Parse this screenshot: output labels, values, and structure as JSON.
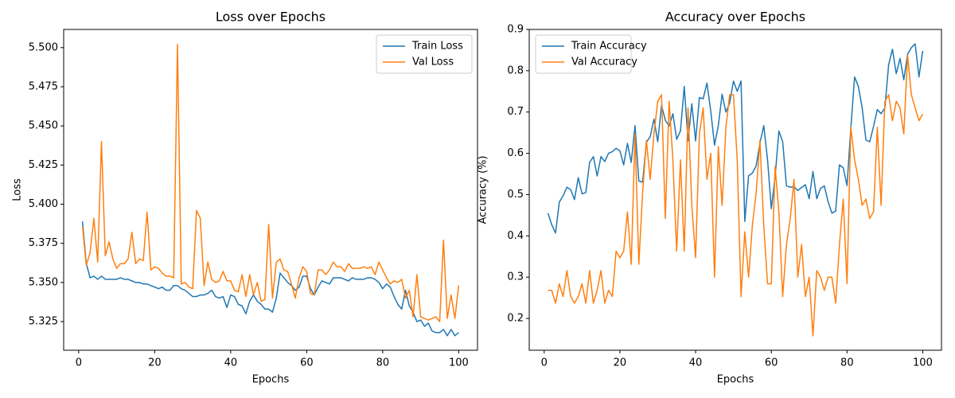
{
  "chart_data": [
    {
      "type": "line",
      "title": "Loss over Epochs",
      "xlabel": "Epochs",
      "ylabel": "Loss",
      "x": [
        1,
        2,
        3,
        4,
        5,
        6,
        7,
        8,
        9,
        10,
        11,
        12,
        13,
        14,
        15,
        16,
        17,
        18,
        19,
        20,
        21,
        22,
        23,
        24,
        25,
        26,
        27,
        28,
        29,
        30,
        31,
        32,
        33,
        34,
        35,
        36,
        37,
        38,
        39,
        40,
        41,
        42,
        43,
        44,
        45,
        46,
        47,
        48,
        49,
        50,
        51,
        52,
        53,
        54,
        55,
        56,
        57,
        58,
        59,
        60,
        61,
        62,
        63,
        64,
        65,
        66,
        67,
        68,
        69,
        70,
        71,
        72,
        73,
        74,
        75,
        76,
        77,
        78,
        79,
        80,
        81,
        82,
        83,
        84,
        85,
        86,
        87,
        88,
        89,
        90,
        91,
        92,
        93,
        94,
        95,
        96,
        97,
        98,
        99,
        100
      ],
      "series": [
        {
          "name": "Train Loss",
          "color": "#1f77b4",
          "values": [
            5.389,
            5.362,
            5.353,
            5.354,
            5.352,
            5.354,
            5.352,
            5.352,
            5.352,
            5.352,
            5.353,
            5.352,
            5.352,
            5.351,
            5.35,
            5.35,
            5.349,
            5.349,
            5.348,
            5.347,
            5.346,
            5.347,
            5.345,
            5.345,
            5.348,
            5.348,
            5.346,
            5.345,
            5.343,
            5.341,
            5.341,
            5.342,
            5.342,
            5.343,
            5.345,
            5.341,
            5.34,
            5.341,
            5.334,
            5.342,
            5.341,
            5.336,
            5.335,
            5.33,
            5.338,
            5.342,
            5.338,
            5.336,
            5.333,
            5.333,
            5.331,
            5.34,
            5.356,
            5.353,
            5.35,
            5.348,
            5.345,
            5.347,
            5.354,
            5.354,
            5.346,
            5.342,
            5.347,
            5.351,
            5.35,
            5.349,
            5.353,
            5.353,
            5.353,
            5.352,
            5.351,
            5.353,
            5.352,
            5.352,
            5.352,
            5.353,
            5.353,
            5.352,
            5.35,
            5.346,
            5.349,
            5.347,
            5.341,
            5.336,
            5.333,
            5.345,
            5.335,
            5.331,
            5.325,
            5.326,
            5.322,
            5.324,
            5.319,
            5.318,
            5.318,
            5.32,
            5.316,
            5.32,
            5.316,
            5.318
          ]
        },
        {
          "name": "Val Loss",
          "color": "#ff7f0e",
          "values": [
            5.386,
            5.361,
            5.369,
            5.391,
            5.363,
            5.44,
            5.367,
            5.376,
            5.365,
            5.359,
            5.362,
            5.362,
            5.365,
            5.382,
            5.362,
            5.365,
            5.364,
            5.395,
            5.358,
            5.36,
            5.359,
            5.356,
            5.354,
            5.354,
            5.353,
            5.502,
            5.349,
            5.35,
            5.347,
            5.346,
            5.396,
            5.391,
            5.348,
            5.363,
            5.352,
            5.35,
            5.351,
            5.357,
            5.351,
            5.351,
            5.345,
            5.344,
            5.355,
            5.341,
            5.355,
            5.342,
            5.35,
            5.338,
            5.339,
            5.387,
            5.34,
            5.363,
            5.365,
            5.358,
            5.357,
            5.349,
            5.34,
            5.353,
            5.36,
            5.357,
            5.343,
            5.342,
            5.358,
            5.358,
            5.355,
            5.358,
            5.363,
            5.36,
            5.36,
            5.357,
            5.362,
            5.359,
            5.359,
            5.359,
            5.36,
            5.359,
            5.36,
            5.355,
            5.363,
            5.358,
            5.353,
            5.349,
            5.351,
            5.35,
            5.352,
            5.34,
            5.345,
            5.328,
            5.355,
            5.328,
            5.327,
            5.326,
            5.327,
            5.328,
            5.325,
            5.377,
            5.327,
            5.342,
            5.327,
            5.348
          ]
        }
      ],
      "xlim": [
        -3.95,
        104.95
      ],
      "ylim": [
        5.3067,
        5.5116
      ],
      "xticks": [
        0,
        20,
        40,
        60,
        80,
        100
      ],
      "yticks": [
        5.325,
        {
          "value": 5.35,
          "label": "5.350"
        },
        5.375,
        {
          "value": 5.4,
          "label": "5.400"
        },
        5.425,
        {
          "value": 5.45,
          "label": "5.450"
        },
        5.475,
        {
          "value": 5.5,
          "label": "5.500"
        }
      ],
      "legend": "upper right"
    },
    {
      "type": "line",
      "title": "Accuracy over Epochs",
      "xlabel": "Epochs",
      "ylabel": "Accuracy (%)",
      "x": [
        1,
        2,
        3,
        4,
        5,
        6,
        7,
        8,
        9,
        10,
        11,
        12,
        13,
        14,
        15,
        16,
        17,
        18,
        19,
        20,
        21,
        22,
        23,
        24,
        25,
        26,
        27,
        28,
        29,
        30,
        31,
        32,
        33,
        34,
        35,
        36,
        37,
        38,
        39,
        40,
        41,
        42,
        43,
        44,
        45,
        46,
        47,
        48,
        49,
        50,
        51,
        52,
        53,
        54,
        55,
        56,
        57,
        58,
        59,
        60,
        61,
        62,
        63,
        64,
        65,
        66,
        67,
        68,
        69,
        70,
        71,
        72,
        73,
        74,
        75,
        76,
        77,
        78,
        79,
        80,
        81,
        82,
        83,
        84,
        85,
        86,
        87,
        88,
        89,
        90,
        91,
        92,
        93,
        94,
        95,
        96,
        97,
        98,
        99,
        100
      ],
      "series": [
        {
          "name": "Train Accuracy",
          "color": "#1f77b4",
          "values": [
            0.455,
            0.427,
            0.407,
            0.482,
            0.497,
            0.518,
            0.512,
            0.488,
            0.541,
            0.502,
            0.505,
            0.578,
            0.592,
            0.545,
            0.592,
            0.58,
            0.6,
            0.604,
            0.612,
            0.606,
            0.572,
            0.624,
            0.578,
            0.667,
            0.533,
            0.53,
            0.627,
            0.64,
            0.683,
            0.628,
            0.716,
            0.68,
            0.666,
            0.696,
            0.634,
            0.654,
            0.762,
            0.63,
            0.72,
            0.63,
            0.735,
            0.732,
            0.77,
            0.702,
            0.62,
            0.667,
            0.743,
            0.7,
            0.722,
            0.775,
            0.75,
            0.775,
            0.435,
            0.546,
            0.552,
            0.57,
            0.625,
            0.667,
            0.585,
            0.466,
            0.543,
            0.654,
            0.628,
            0.521,
            0.518,
            0.519,
            0.51,
            0.517,
            0.524,
            0.49,
            0.556,
            0.49,
            0.515,
            0.521,
            0.483,
            0.455,
            0.46,
            0.572,
            0.565,
            0.522,
            0.66,
            0.785,
            0.762,
            0.71,
            0.632,
            0.628,
            0.665,
            0.706,
            0.696,
            0.71,
            0.815,
            0.852,
            0.793,
            0.83,
            0.778,
            0.84,
            0.856,
            0.865,
            0.785,
            0.848
          ]
        },
        {
          "name": "Val Accuracy",
          "color": "#ff7f0e",
          "values": [
            0.268,
            0.268,
            0.237,
            0.284,
            0.253,
            0.316,
            0.253,
            0.237,
            0.253,
            0.284,
            0.237,
            0.316,
            0.237,
            0.268,
            0.316,
            0.237,
            0.268,
            0.253,
            0.363,
            0.347,
            0.363,
            0.458,
            0.331,
            0.647,
            0.331,
            0.505,
            0.631,
            0.537,
            0.647,
            0.726,
            0.742,
            0.442,
            0.726,
            0.584,
            0.363,
            0.584,
            0.363,
            0.71,
            0.474,
            0.347,
            0.647,
            0.71,
            0.537,
            0.6,
            0.3,
            0.616,
            0.474,
            0.663,
            0.742,
            0.742,
            0.584,
            0.253,
            0.41,
            0.3,
            0.426,
            0.505,
            0.631,
            0.426,
            0.284,
            0.284,
            0.568,
            0.458,
            0.253,
            0.379,
            0.442,
            0.537,
            0.3,
            0.379,
            0.253,
            0.3,
            0.158,
            0.316,
            0.3,
            0.268,
            0.3,
            0.3,
            0.237,
            0.379,
            0.489,
            0.284,
            0.663,
            0.584,
            0.537,
            0.474,
            0.489,
            0.442,
            0.458,
            0.663,
            0.474,
            0.726,
            0.742,
            0.679,
            0.726,
            0.71,
            0.647,
            0.837,
            0.742,
            0.71,
            0.679,
            0.695
          ]
        }
      ],
      "xlim": [
        -3.95,
        104.95
      ],
      "ylim": [
        0.123,
        0.9
      ],
      "xticks": [
        0,
        20,
        40,
        60,
        80,
        100
      ],
      "yticks": [
        0.2,
        0.3,
        0.4,
        0.5,
        0.6,
        0.7,
        0.8,
        0.9
      ],
      "legend": "upper left"
    }
  ]
}
